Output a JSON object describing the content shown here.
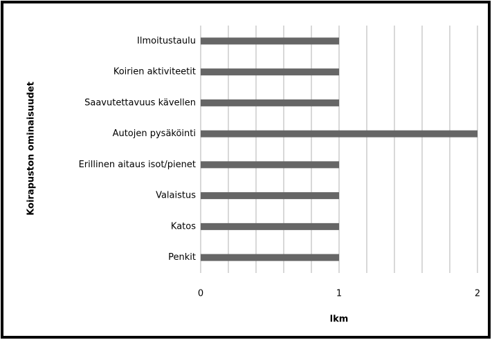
{
  "chart_data": {
    "type": "bar",
    "orientation": "horizontal",
    "xlabel": "lkm",
    "ylabel": "Koirapuston ominaisuudet",
    "categories": [
      "Ilmoitustaulu",
      "Koirien aktiviteetit",
      "Saavutettavuus kävellen",
      "Autojen pysäköinti",
      "Erillinen aitaus isot/pienet",
      "Valaistus",
      "Katos",
      "Penkit"
    ],
    "values": [
      1,
      1,
      1,
      2,
      1,
      1,
      1,
      1
    ],
    "color": "#666666",
    "xlim": [
      0,
      2
    ],
    "xticks": [
      0,
      1,
      2
    ],
    "x_minor_ticks": [
      0.2,
      0.4,
      0.6,
      0.8,
      1.2,
      1.4,
      1.6,
      1.8
    ],
    "grid": true
  }
}
